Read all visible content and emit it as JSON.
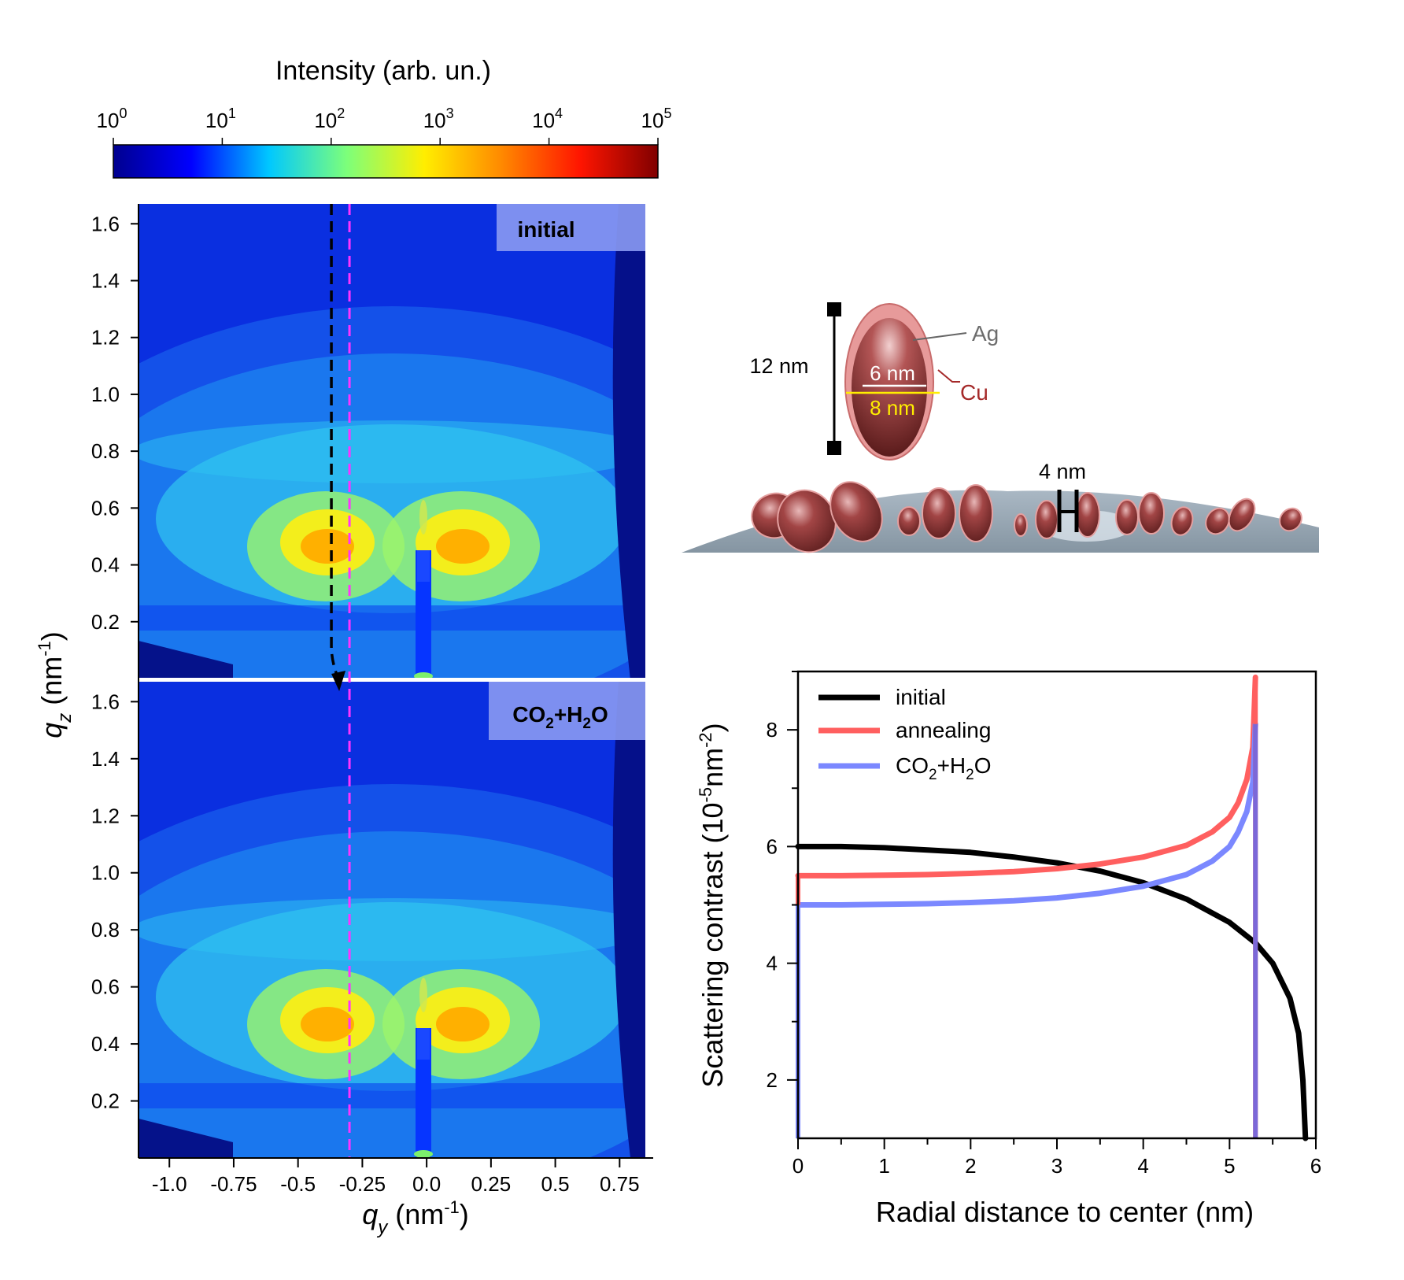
{
  "colorbar": {
    "title": "Intensity (arb. un.)",
    "ticks": [
      {
        "base": "10",
        "exp": "0"
      },
      {
        "base": "10",
        "exp": "1"
      },
      {
        "base": "10",
        "exp": "2"
      },
      {
        "base": "10",
        "exp": "3"
      },
      {
        "base": "10",
        "exp": "4"
      },
      {
        "base": "10",
        "exp": "5"
      }
    ],
    "colors": [
      "#00008f",
      "#0000ff",
      "#00c8ff",
      "#7dff7a",
      "#ffee00",
      "#ff8800",
      "#ff1500",
      "#800000"
    ]
  },
  "maps": {
    "x_label": {
      "q": "q",
      "sub": "y",
      "unit": " (nm",
      "sup": "-1",
      "close": ")"
    },
    "y_label": {
      "q": "q",
      "sub": "z",
      "unit": " (nm",
      "sup": "-1",
      "close": ")"
    },
    "x_ticks": [
      "-1.0",
      "-0.75",
      "-0.5",
      "-0.25",
      "0.0",
      "0.25",
      "0.5",
      "0.75"
    ],
    "x_tick_values": [
      -1.0,
      -0.75,
      -0.5,
      -0.25,
      0.0,
      0.25,
      0.5,
      0.75
    ],
    "x_range": [
      -1.12,
      0.85
    ],
    "y_ticks": [
      "1.6",
      "1.4",
      "1.2",
      "1.0",
      "0.8",
      "0.6",
      "0.4",
      "0.2"
    ],
    "y_tick_values": [
      1.6,
      1.4,
      1.2,
      1.0,
      0.8,
      0.6,
      0.4,
      0.2
    ],
    "y_range": [
      0.0,
      1.67
    ],
    "cut_line_qy": -0.3,
    "top_label": "initial",
    "bottom_label": {
      "a": "CO",
      "s1": "2",
      "b": "+H",
      "s2": "2",
      "c": "O"
    }
  },
  "schematic": {
    "height_label": "12 nm",
    "inner_label": "6 nm",
    "outer_label": "8 nm",
    "ag_label": "Ag",
    "cu_label": "Cu",
    "gap_label": "4 nm"
  },
  "chart_data": {
    "type": "line",
    "xlabel": "Radial distance to center (nm)",
    "ylabel": {
      "a": "Scattering contrast (10",
      "s1": "-5",
      "b": "nm",
      "s2": "-2",
      "c": ")"
    },
    "xlim": [
      0,
      6
    ],
    "ylim": [
      1,
      9
    ],
    "x_ticks": [
      "0",
      "1",
      "2",
      "3",
      "4",
      "5",
      "6"
    ],
    "y_ticks": [
      "2",
      "4",
      "6",
      "8"
    ],
    "series": [
      {
        "name": "initial",
        "color": "#000000",
        "x": [
          0,
          0.5,
          1,
          1.5,
          2,
          2.5,
          3,
          3.5,
          4,
          4.5,
          5,
          5.3,
          5.5,
          5.7,
          5.8,
          5.85,
          5.88
        ],
        "y": [
          6.0,
          6.0,
          5.98,
          5.94,
          5.9,
          5.82,
          5.72,
          5.58,
          5.38,
          5.1,
          4.7,
          4.35,
          4.0,
          3.4,
          2.8,
          2.0,
          1.0
        ]
      },
      {
        "name": "annealing",
        "color": "#ff5f5f",
        "x": [
          0,
          0.5,
          1,
          1.5,
          2,
          2.5,
          3,
          3.5,
          4,
          4.5,
          4.8,
          5.0,
          5.1,
          5.2,
          5.27,
          5.3
        ],
        "y": [
          5.5,
          5.5,
          5.51,
          5.52,
          5.54,
          5.57,
          5.62,
          5.7,
          5.82,
          6.02,
          6.25,
          6.5,
          6.75,
          7.15,
          7.7,
          8.9
        ]
      },
      {
        "name": "CO2+H2O",
        "label": {
          "a": "CO",
          "s1": "2",
          "b": "+H",
          "s2": "2",
          "c": "O"
        },
        "color": "#7b88ff",
        "x": [
          0,
          0.5,
          1,
          1.5,
          2,
          2.5,
          3,
          3.5,
          4,
          4.5,
          4.8,
          5.0,
          5.1,
          5.2,
          5.27,
          5.3
        ],
        "y": [
          5.0,
          5.0,
          5.01,
          5.02,
          5.04,
          5.07,
          5.12,
          5.2,
          5.32,
          5.52,
          5.75,
          6.0,
          6.25,
          6.6,
          7.1,
          8.1
        ]
      }
    ],
    "vertical_marks": [
      {
        "name": "annealing",
        "x": 0,
        "from": 5.5,
        "to": 1,
        "color": "#ff5f5f"
      },
      {
        "name": "CO2+H2O",
        "x": 0,
        "from": 5.0,
        "to": 1,
        "color": "#7b88ff"
      },
      {
        "name": "annealing",
        "x": 5.3,
        "from": 8.9,
        "to": 1,
        "color": "#ff5f5f"
      },
      {
        "name": "CO2+H2O",
        "x": 5.3,
        "from": 8.1,
        "to": 1,
        "color": "#7b68d8"
      }
    ],
    "legend": "top-left"
  }
}
